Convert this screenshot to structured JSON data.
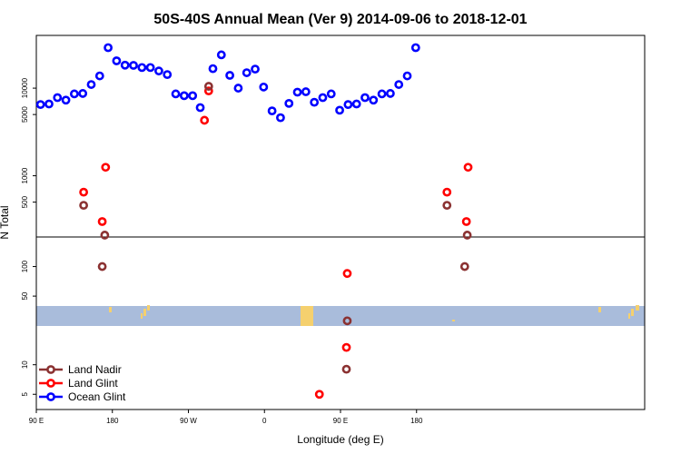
{
  "chart_data": {
    "type": "scatter",
    "title": "50S-40S Annual Mean (Ver 9)   2014-09-06 to 2018-12-01",
    "xlabel": "Longitude (deg E)",
    "ylabel": "N Total",
    "x_range": [
      90,
      450
    ],
    "x_ticks": [
      {
        "value": 90,
        "label": "90 E"
      },
      {
        "value": 180,
        "label": "180"
      },
      {
        "value": 270,
        "label": "90 W"
      },
      {
        "value": 360,
        "label": "0"
      },
      {
        "value": 450,
        "label": "90 E"
      },
      {
        "value": 540,
        "label": "180"
      }
    ],
    "upper_panel": {
      "scale": "log",
      "y_range": [
        200,
        40000
      ],
      "y_ticks": [
        {
          "value": 500,
          "label": "500"
        },
        {
          "value": 1000,
          "label": "1000"
        },
        {
          "value": 5000,
          "label": "5000"
        },
        {
          "value": 10000,
          "label": "10000"
        }
      ]
    },
    "lower_panel": {
      "scale": "log",
      "y_range": [
        3.5,
        200
      ],
      "y_ticks": [
        {
          "value": 5,
          "label": "5"
        },
        {
          "value": 10,
          "label": "10"
        },
        {
          "value": 50,
          "label": "50"
        },
        {
          "value": 100,
          "label": "100"
        }
      ]
    },
    "legend_position": "bottom-left",
    "series": [
      {
        "name": "Land Nadir",
        "color": "#8b3232",
        "points": [
          {
            "lon": 146,
            "y": 460
          },
          {
            "lon": 168,
            "y": 100
          },
          {
            "lon": 171,
            "y": 210
          },
          {
            "lon": 294,
            "y": 10500
          },
          {
            "lon": 457,
            "y": 9
          },
          {
            "lon": 458,
            "y": 28
          },
          {
            "lon": 576,
            "y": 460
          },
          {
            "lon": 597,
            "y": 100
          },
          {
            "lon": 600,
            "y": 210
          }
        ]
      },
      {
        "name": "Land Glint",
        "color": "#ff0000",
        "points": [
          {
            "lon": 146,
            "y": 650
          },
          {
            "lon": 168,
            "y": 300
          },
          {
            "lon": 172,
            "y": 1250
          },
          {
            "lon": 289,
            "y": 4300
          },
          {
            "lon": 294,
            "y": 9300
          },
          {
            "lon": 425,
            "y": 5
          },
          {
            "lon": 457,
            "y": 15
          },
          {
            "lon": 458,
            "y": 85
          },
          {
            "lon": 576,
            "y": 650
          },
          {
            "lon": 599,
            "y": 300
          },
          {
            "lon": 601,
            "y": 1250
          }
        ]
      },
      {
        "name": "Ocean Glint",
        "color": "#0000ff",
        "points": [
          {
            "lon": 95,
            "y": 6500
          },
          {
            "lon": 105,
            "y": 6600
          },
          {
            "lon": 115,
            "y": 7800
          },
          {
            "lon": 125,
            "y": 7300
          },
          {
            "lon": 135,
            "y": 8600
          },
          {
            "lon": 145,
            "y": 8700
          },
          {
            "lon": 155,
            "y": 11000
          },
          {
            "lon": 165,
            "y": 13800
          },
          {
            "lon": 175,
            "y": 29000
          },
          {
            "lon": 185,
            "y": 20500
          },
          {
            "lon": 195,
            "y": 18300
          },
          {
            "lon": 205,
            "y": 18200
          },
          {
            "lon": 215,
            "y": 17200
          },
          {
            "lon": 225,
            "y": 17200
          },
          {
            "lon": 235,
            "y": 15700
          },
          {
            "lon": 245,
            "y": 14300
          },
          {
            "lon": 255,
            "y": 8600
          },
          {
            "lon": 265,
            "y": 8200
          },
          {
            "lon": 275,
            "y": 8200
          },
          {
            "lon": 284,
            "y": 6000
          },
          {
            "lon": 299,
            "y": 16700
          },
          {
            "lon": 309,
            "y": 24000
          },
          {
            "lon": 319,
            "y": 14000
          },
          {
            "lon": 329,
            "y": 10000
          },
          {
            "lon": 339,
            "y": 15000
          },
          {
            "lon": 349,
            "y": 16500
          },
          {
            "lon": 359,
            "y": 10300
          },
          {
            "lon": 369,
            "y": 5500
          },
          {
            "lon": 379,
            "y": 4600
          },
          {
            "lon": 389,
            "y": 6700
          },
          {
            "lon": 399,
            "y": 9000
          },
          {
            "lon": 409,
            "y": 9100
          },
          {
            "lon": 419,
            "y": 6900
          },
          {
            "lon": 429,
            "y": 7800
          },
          {
            "lon": 439,
            "y": 8600
          },
          {
            "lon": 449,
            "y": 5600
          },
          {
            "lon": 459,
            "y": 6500
          },
          {
            "lon": 469,
            "y": 6600
          },
          {
            "lon": 479,
            "y": 7800
          },
          {
            "lon": 489,
            "y": 7300
          },
          {
            "lon": 499,
            "y": 8600
          },
          {
            "lon": 509,
            "y": 8700
          },
          {
            "lon": 519,
            "y": 11000
          },
          {
            "lon": 529,
            "y": 13800
          },
          {
            "lon": 539,
            "y": 29000
          }
        ]
      }
    ]
  },
  "colors": {
    "ocean_band": "#a9bcdb",
    "land_mass": "#f5d06e"
  }
}
